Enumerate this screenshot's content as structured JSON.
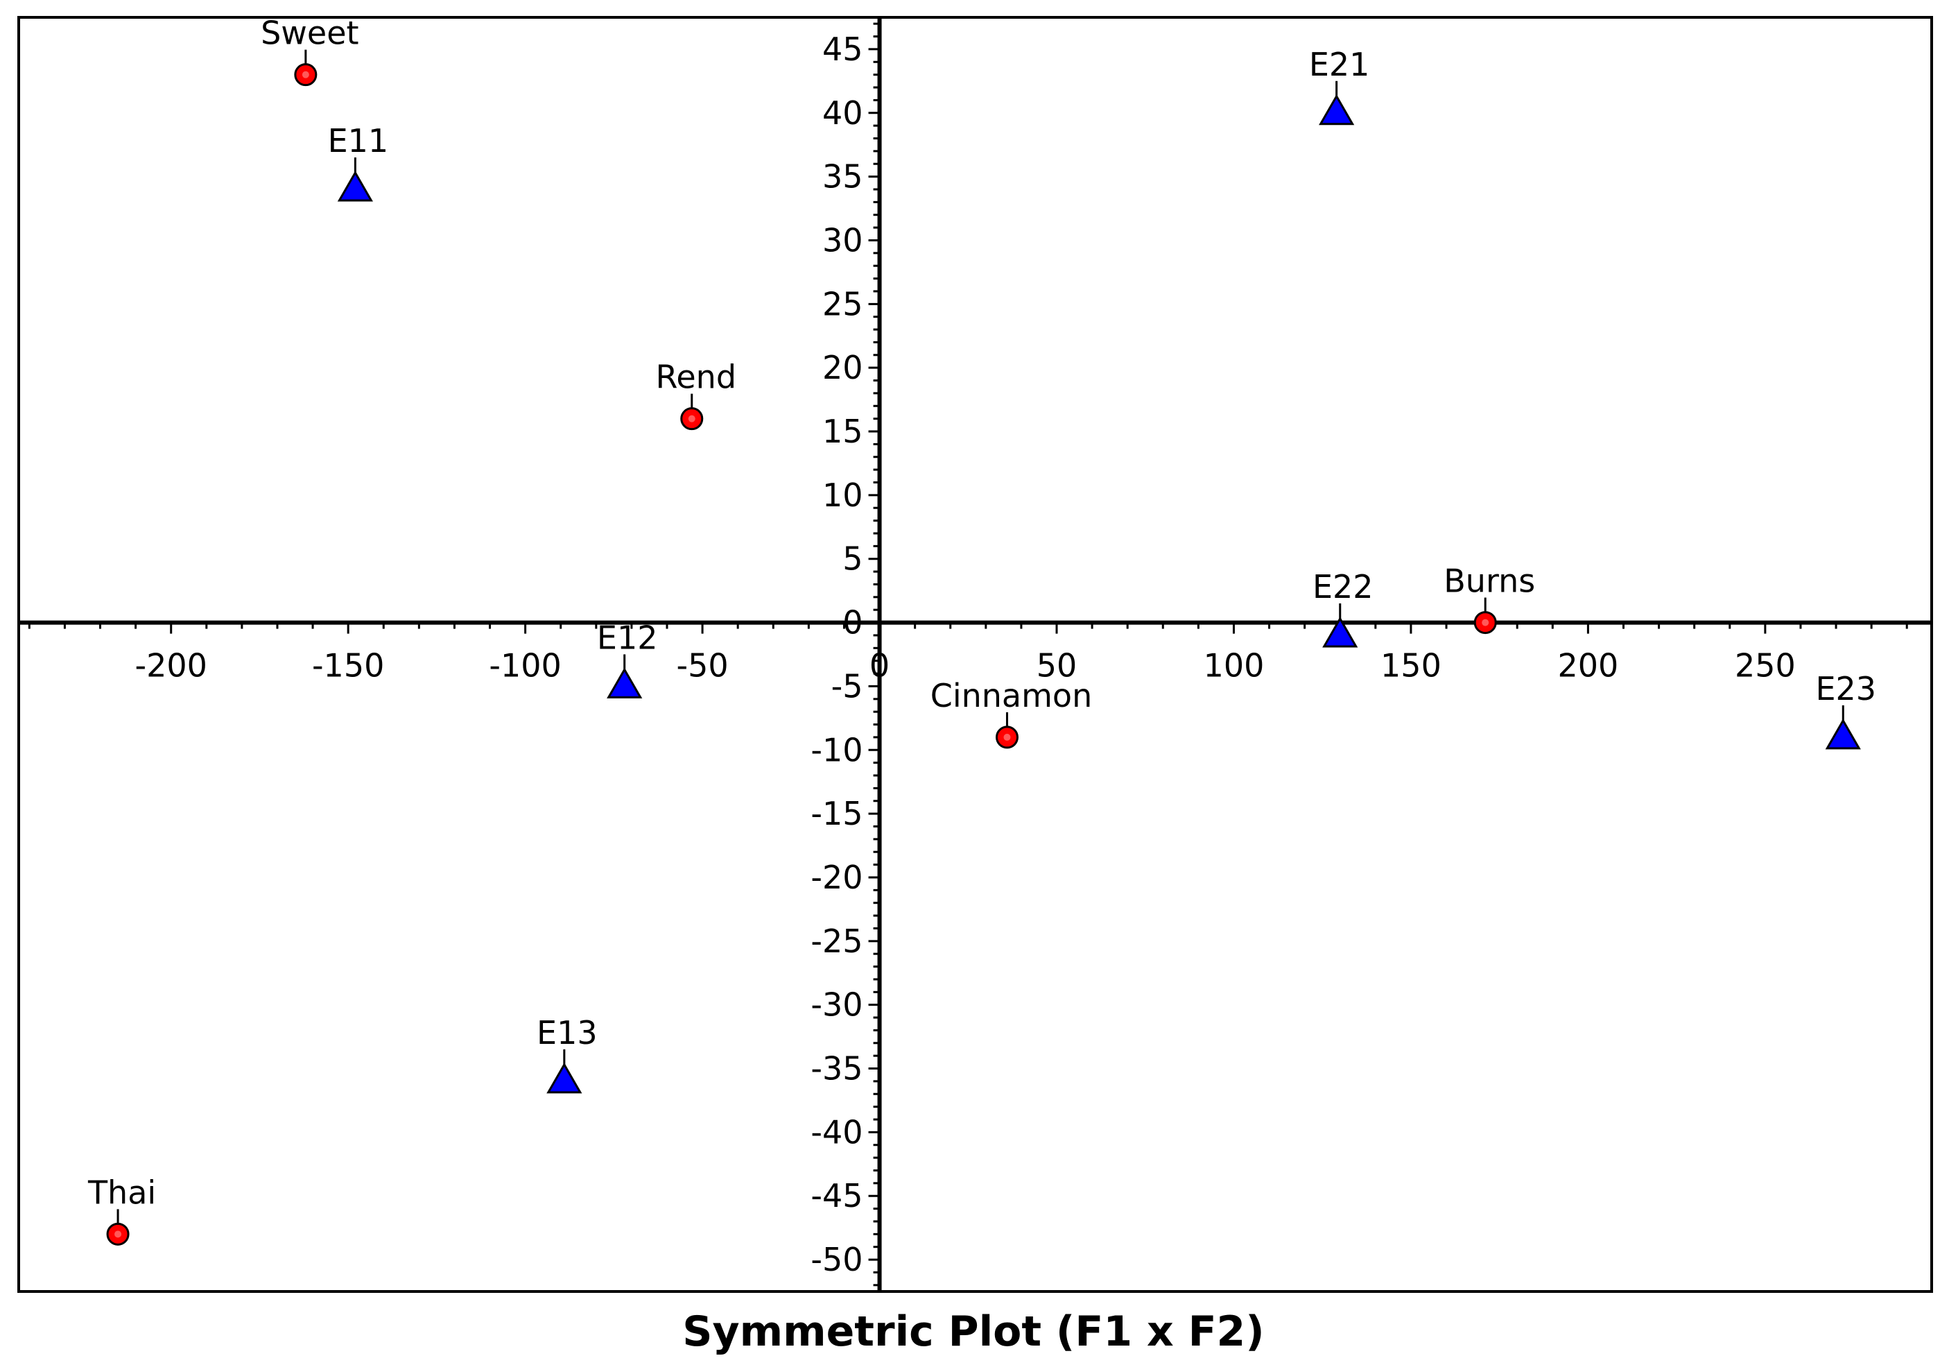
{
  "chart_data": {
    "type": "scatter",
    "title": "Symmetric Plot (F1 x F2)",
    "xlabel": "",
    "ylabel": "",
    "xlim": [
      -243,
      297
    ],
    "ylim": [
      -52.5,
      47.5
    ],
    "x_ticks": [
      -200,
      -150,
      -100,
      -50,
      0,
      50,
      100,
      150,
      200,
      250
    ],
    "y_ticks": [
      45,
      40,
      35,
      30,
      25,
      20,
      15,
      10,
      5,
      0,
      -5,
      -10,
      -15,
      -20,
      -25,
      -30,
      -35,
      -40,
      -45,
      -50
    ],
    "x_tick_labels": [
      "-200",
      "-150",
      "-100",
      "-50",
      "0",
      "50",
      "100",
      "150",
      "200",
      "250"
    ],
    "y_tick_labels": [
      "45",
      "40",
      "35",
      "30",
      "25",
      "20",
      "15",
      "10",
      "5",
      "0",
      "-5",
      "-10",
      "-15",
      "-20",
      "-25",
      "-30",
      "-35",
      "-40",
      "-45",
      "-50"
    ],
    "grid": false,
    "series": [
      {
        "color": "#ff0000",
        "marker": "circle",
        "points": [
          {
            "label": "Sweet",
            "x": -162,
            "y": 43
          },
          {
            "label": "Rend",
            "x": -53,
            "y": 16
          },
          {
            "label": "Burns",
            "x": 171,
            "y": 0
          },
          {
            "label": "Cinnamon",
            "x": 36,
            "y": -9
          },
          {
            "label": "Thai",
            "x": -215,
            "y": -48
          }
        ]
      },
      {
        "color": "#0000ff",
        "marker": "triangle",
        "points": [
          {
            "label": "E11",
            "x": -148,
            "y": 34
          },
          {
            "label": "E21",
            "x": 129,
            "y": 40
          },
          {
            "label": "E12",
            "x": -72,
            "y": -5
          },
          {
            "label": "E22",
            "x": 130,
            "y": -1
          },
          {
            "label": "E23",
            "x": 272,
            "y": -9
          },
          {
            "label": "E13",
            "x": -89,
            "y": -36
          }
        ]
      }
    ]
  }
}
